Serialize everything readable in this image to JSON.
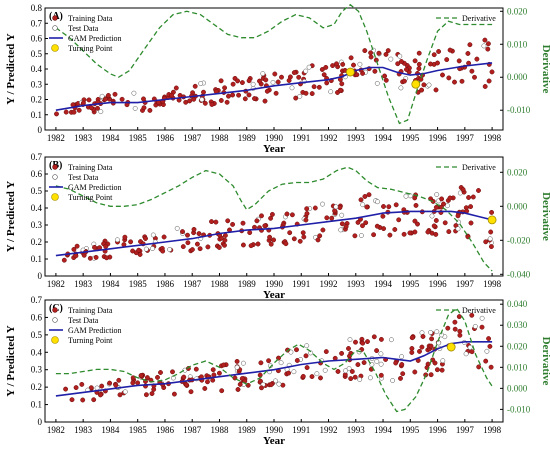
{
  "chart_data": [
    {
      "type": "scatter",
      "panel_label": "(A)",
      "xlabel": "Year",
      "ylabel": "Y / Predicted Y",
      "ylabel2": "Derivative",
      "xlim": [
        1981.6,
        1998.4
      ],
      "ylim": [
        0,
        0.8
      ],
      "y2lim": [
        -0.016,
        0.021
      ],
      "xticks": [
        "1982",
        "1983",
        "1984",
        "1985",
        "1986",
        "1987",
        "1988",
        "1989",
        "1990",
        "1991",
        "1992",
        "1993",
        "1994",
        "1995",
        "1996",
        "1997",
        "1998"
      ],
      "yticks": [
        "0",
        "0.1",
        "0.2",
        "0.3",
        "0.4",
        "0.5",
        "0.6",
        "0.7",
        "0.8"
      ],
      "y2ticks": [
        "-0.010",
        "0.000",
        "0.010",
        "0.020"
      ],
      "legend": {
        "training": "Training Data",
        "test": "Test Data",
        "gam": "GAM Prediction",
        "turning": "Turning Point",
        "derivative": "Derivative"
      },
      "colors": {
        "training": "#b21f1f",
        "test": "#ffffff",
        "gam": "#1f1fa8",
        "turning": "#ffe000",
        "derivative": "#2e8b2e"
      },
      "gam_curve": [
        [
          1982,
          0.13
        ],
        [
          1983,
          0.16
        ],
        [
          1984,
          0.18
        ],
        [
          1985,
          0.18
        ],
        [
          1986,
          0.2
        ],
        [
          1987,
          0.22
        ],
        [
          1988,
          0.24
        ],
        [
          1989,
          0.26
        ],
        [
          1990,
          0.29
        ],
        [
          1991,
          0.31
        ],
        [
          1992,
          0.33
        ],
        [
          1992.5,
          0.35
        ],
        [
          1993,
          0.39
        ],
        [
          1993.5,
          0.41
        ],
        [
          1994,
          0.41
        ],
        [
          1994.5,
          0.38
        ],
        [
          1995,
          0.36
        ],
        [
          1995.5,
          0.37
        ],
        [
          1996,
          0.39
        ],
        [
          1997,
          0.42
        ],
        [
          1998,
          0.44
        ]
      ],
      "derivative_curve": [
        [
          1982,
          0.015
        ],
        [
          1982.5,
          0.012
        ],
        [
          1983,
          0.008
        ],
        [
          1983.5,
          0.004
        ],
        [
          1984,
          0.001
        ],
        [
          1984.3,
          0
        ],
        [
          1984.7,
          0.002
        ],
        [
          1985.2,
          0.008
        ],
        [
          1985.8,
          0.015
        ],
        [
          1986.3,
          0.019
        ],
        [
          1986.8,
          0.02
        ],
        [
          1987.3,
          0.019
        ],
        [
          1987.8,
          0.016
        ],
        [
          1988.3,
          0.013
        ],
        [
          1988.8,
          0.012
        ],
        [
          1989.3,
          0.012
        ],
        [
          1989.8,
          0.014
        ],
        [
          1990.3,
          0.017
        ],
        [
          1990.8,
          0.019
        ],
        [
          1991.3,
          0.018
        ],
        [
          1991.8,
          0.015
        ],
        [
          1992.2,
          0.016
        ],
        [
          1992.5,
          0.02
        ],
        [
          1992.8,
          0.022
        ],
        [
          1993.1,
          0.02
        ],
        [
          1993.4,
          0.014
        ],
        [
          1993.8,
          0.004
        ],
        [
          1994.2,
          -0.006
        ],
        [
          1994.6,
          -0.014
        ],
        [
          1994.9,
          -0.013
        ],
        [
          1995.2,
          -0.005
        ],
        [
          1995.6,
          0.005
        ],
        [
          1996,
          0.014
        ],
        [
          1996.4,
          0.017
        ],
        [
          1996.8,
          0.016
        ],
        [
          1997.3,
          0.016
        ],
        [
          1997.8,
          0.016
        ],
        [
          1998,
          0.016
        ]
      ],
      "turning_points": [
        [
          1992.8,
          0.38
        ],
        [
          1995.2,
          0.3
        ]
      ],
      "test_fraction": 0.15,
      "n_points": 250,
      "seed": 11
    },
    {
      "type": "scatter",
      "panel_label": "(B)",
      "xlabel": "Year",
      "ylabel": "Y / Predicted Y",
      "ylabel2": "Derivative",
      "xlim": [
        1981.6,
        1998.4
      ],
      "ylim": [
        0,
        0.7
      ],
      "y2lim": [
        -0.041,
        0.029
      ],
      "xticks": [
        "1982",
        "1983",
        "1984",
        "1985",
        "1986",
        "1987",
        "1988",
        "1989",
        "1990",
        "1991",
        "1992",
        "1993",
        "1994",
        "1995",
        "1996",
        "1997",
        "1998"
      ],
      "yticks": [
        "0",
        "0.1",
        "0.2",
        "0.3",
        "0.4",
        "0.5",
        "0.6",
        "0.7"
      ],
      "y2ticks": [
        "-0.040",
        "-0.020",
        "0.000",
        "0.020"
      ],
      "legend": {
        "training": "Training Data",
        "test": "Test Data",
        "gam": "GAM Prediction",
        "turning": "Turning Point",
        "derivative": "Derivative"
      },
      "colors": {
        "training": "#b21f1f",
        "test": "#ffffff",
        "gam": "#1f1fa8",
        "turning": "#ffe000",
        "derivative": "#2e8b2e"
      },
      "gam_curve": [
        [
          1982,
          0.12
        ],
        [
          1983,
          0.14
        ],
        [
          1984,
          0.16
        ],
        [
          1985,
          0.18
        ],
        [
          1986,
          0.2
        ],
        [
          1987,
          0.22
        ],
        [
          1988,
          0.25
        ],
        [
          1989,
          0.27
        ],
        [
          1990,
          0.28
        ],
        [
          1991,
          0.3
        ],
        [
          1992,
          0.32
        ],
        [
          1993,
          0.34
        ],
        [
          1994,
          0.37
        ],
        [
          1995,
          0.38
        ],
        [
          1996,
          0.38
        ],
        [
          1996.5,
          0.38
        ],
        [
          1997,
          0.37
        ],
        [
          1997.5,
          0.35
        ],
        [
          1998,
          0.33
        ]
      ],
      "derivative_curve": [
        [
          1982,
          0.012
        ],
        [
          1982.5,
          0.01
        ],
        [
          1983,
          0.006
        ],
        [
          1983.5,
          0.002
        ],
        [
          1984,
          0
        ],
        [
          1984.5,
          0
        ],
        [
          1985,
          0.001
        ],
        [
          1985.5,
          0.004
        ],
        [
          1986,
          0.008
        ],
        [
          1986.5,
          0.012
        ],
        [
          1987,
          0.017
        ],
        [
          1987.5,
          0.021
        ],
        [
          1988,
          0.019
        ],
        [
          1988.5,
          0.012
        ],
        [
          1988.8,
          0.003
        ],
        [
          1989,
          -0.002
        ],
        [
          1989.3,
          0.001
        ],
        [
          1989.8,
          0.009
        ],
        [
          1990.3,
          0.013
        ],
        [
          1990.8,
          0.014
        ],
        [
          1991.3,
          0.014
        ],
        [
          1991.8,
          0.016
        ],
        [
          1992.3,
          0.021
        ],
        [
          1992.7,
          0.023
        ],
        [
          1993,
          0.021
        ],
        [
          1993.4,
          0.015
        ],
        [
          1993.8,
          0.011
        ],
        [
          1994.3,
          0.01
        ],
        [
          1994.8,
          0.008
        ],
        [
          1995.3,
          0.006
        ],
        [
          1995.8,
          0.003
        ],
        [
          1996.3,
          -0.002
        ],
        [
          1996.8,
          -0.01
        ],
        [
          1997.3,
          -0.022
        ],
        [
          1997.7,
          -0.033
        ],
        [
          1998,
          -0.038
        ]
      ],
      "turning_points": [
        [
          1998,
          0.33
        ]
      ],
      "test_fraction": 0.15,
      "n_points": 250,
      "seed": 23
    },
    {
      "type": "scatter",
      "panel_label": "(C)",
      "xlabel": "Year",
      "ylabel": "Y / Predicted Y",
      "ylabel2": "Derivative",
      "xlim": [
        1981.6,
        1998.4
      ],
      "ylim": [
        0,
        0.7
      ],
      "y2lim": [
        -0.016,
        0.042
      ],
      "xticks": [
        "1982",
        "1983",
        "1984",
        "1985",
        "1986",
        "1987",
        "1988",
        "1989",
        "1990",
        "1991",
        "1992",
        "1993",
        "1994",
        "1995",
        "1996",
        "1997",
        "1998"
      ],
      "yticks": [
        "0",
        "0.1",
        "0.2",
        "0.3",
        "0.4",
        "0.5",
        "0.6",
        "0.7"
      ],
      "y2ticks": [
        "-0.010",
        "0.000",
        "0.010",
        "0.020",
        "0.030",
        "0.040"
      ],
      "legend": {
        "training": "Training Data",
        "test": "Test Data",
        "gam": "GAM Prediction",
        "turning": "Turning Point",
        "derivative": "Derivative"
      },
      "colors": {
        "training": "#b21f1f",
        "test": "#ffffff",
        "gam": "#1f1fa8",
        "turning": "#ffe000",
        "derivative": "#2e8b2e"
      },
      "gam_curve": [
        [
          1982,
          0.15
        ],
        [
          1983,
          0.17
        ],
        [
          1984,
          0.19
        ],
        [
          1985,
          0.21
        ],
        [
          1986,
          0.22
        ],
        [
          1987,
          0.24
        ],
        [
          1988,
          0.26
        ],
        [
          1989,
          0.28
        ],
        [
          1990,
          0.3
        ],
        [
          1991,
          0.33
        ],
        [
          1992,
          0.35
        ],
        [
          1993,
          0.36
        ],
        [
          1994,
          0.37
        ],
        [
          1994.5,
          0.36
        ],
        [
          1995,
          0.35
        ],
        [
          1995.5,
          0.38
        ],
        [
          1996,
          0.42
        ],
        [
          1996.5,
          0.45
        ],
        [
          1997,
          0.46
        ],
        [
          1998,
          0.46
        ]
      ],
      "derivative_curve": [
        [
          1982,
          0.007
        ],
        [
          1982.5,
          0.007
        ],
        [
          1983,
          0.008
        ],
        [
          1983.5,
          0.009
        ],
        [
          1984,
          0.009
        ],
        [
          1984.5,
          0.008
        ],
        [
          1985,
          0.005
        ],
        [
          1985.5,
          0.003
        ],
        [
          1986,
          0.004
        ],
        [
          1986.5,
          0.007
        ],
        [
          1987,
          0.011
        ],
        [
          1987.5,
          0.013
        ],
        [
          1988,
          0.01
        ],
        [
          1988.5,
          0.005
        ],
        [
          1989,
          0.002
        ],
        [
          1989.5,
          0.005
        ],
        [
          1990,
          0.012
        ],
        [
          1990.5,
          0.018
        ],
        [
          1990.9,
          0.021
        ],
        [
          1991.3,
          0.018
        ],
        [
          1991.8,
          0.012
        ],
        [
          1992.2,
          0.009
        ],
        [
          1992.6,
          0.012
        ],
        [
          1993,
          0.018
        ],
        [
          1993.3,
          0.017
        ],
        [
          1993.7,
          0.008
        ],
        [
          1994.1,
          -0.003
        ],
        [
          1994.5,
          -0.011
        ],
        [
          1994.8,
          -0.01
        ],
        [
          1995.2,
          -0.004
        ],
        [
          1995.6,
          0.007
        ],
        [
          1996,
          0.022
        ],
        [
          1996.4,
          0.035
        ],
        [
          1996.7,
          0.038
        ],
        [
          1997,
          0.032
        ],
        [
          1997.4,
          0.016
        ],
        [
          1997.8,
          0.005
        ],
        [
          1998,
          0.001
        ]
      ],
      "turning_points": [
        [
          1996.5,
          0.43
        ]
      ],
      "test_fraction": 0.2,
      "n_points": 250,
      "seed": 37
    }
  ]
}
